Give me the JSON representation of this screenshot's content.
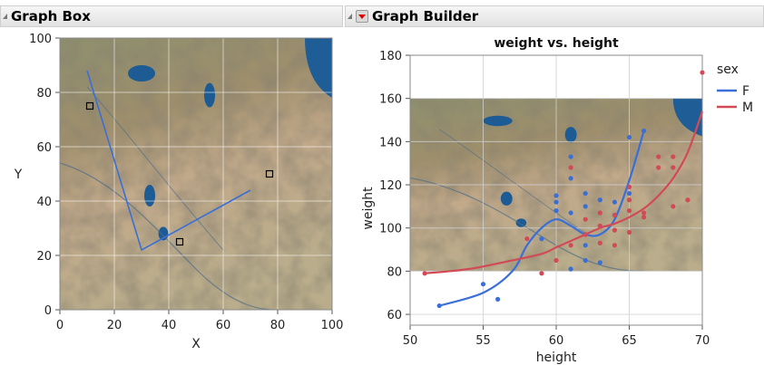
{
  "panels": {
    "left_title": "Graph Box",
    "right_title": "Graph Builder"
  },
  "colors": {
    "F": "#3a6fd8",
    "M": "#d24a55",
    "grid": "#cfcfcf"
  },
  "chart_data": [
    {
      "type": "line",
      "title": "",
      "xlabel": "X",
      "ylabel": "Y",
      "xlim": [
        0,
        100
      ],
      "ylim": [
        0,
        100
      ],
      "x_ticks": [
        0,
        20,
        40,
        60,
        80,
        100
      ],
      "y_ticks": [
        0,
        20,
        40,
        60,
        80,
        100
      ],
      "grid": true,
      "background": "satellite-map-image",
      "series": [
        {
          "values": [
            [
              10,
              88
            ],
            [
              30,
              22
            ],
            [
              70,
              44
            ]
          ]
        }
      ],
      "markers": [
        [
          11,
          75
        ],
        [
          77,
          50
        ],
        [
          44,
          25
        ]
      ]
    },
    {
      "type": "scatter",
      "title": "weight vs. height",
      "xlabel": "height",
      "ylabel": "weight",
      "xlim": [
        50,
        70
      ],
      "ylim": [
        55,
        180
      ],
      "x_ticks": [
        50,
        55,
        60,
        65,
        70
      ],
      "y_ticks": [
        60,
        80,
        100,
        120,
        140,
        160,
        180
      ],
      "grid": true,
      "background": "satellite-map-image",
      "background_extent": {
        "x": [
          50,
          70
        ],
        "y": [
          80,
          160
        ]
      },
      "legend": {
        "title": "sex",
        "position": "right",
        "entries": [
          "F",
          "M"
        ]
      },
      "series": [
        {
          "name": "F",
          "points": [
            [
              52,
              64
            ],
            [
              55,
              74
            ],
            [
              56,
              67
            ],
            [
              59,
              95
            ],
            [
              60,
              112
            ],
            [
              60,
              115
            ],
            [
              60,
              108
            ],
            [
              61,
              133
            ],
            [
              61,
              123
            ],
            [
              61,
              107
            ],
            [
              61,
              81
            ],
            [
              62,
              85
            ],
            [
              62,
              92
            ],
            [
              62,
              110
            ],
            [
              62,
              116
            ],
            [
              63,
              84
            ],
            [
              63,
              113
            ],
            [
              64,
              112
            ],
            [
              65,
              142
            ],
            [
              65,
              116
            ],
            [
              66,
              145
            ]
          ],
          "fit": [
            [
              52,
              64
            ],
            [
              55,
              70
            ],
            [
              57,
              80
            ],
            [
              58,
              92
            ],
            [
              59,
              100
            ],
            [
              60,
              104
            ],
            [
              61,
              101
            ],
            [
              62,
              97
            ],
            [
              63,
              97
            ],
            [
              64,
              104
            ],
            [
              65,
              122
            ],
            [
              66,
              145
            ]
          ]
        },
        {
          "name": "M",
          "points": [
            [
              51,
              79
            ],
            [
              58,
              95
            ],
            [
              59,
              79
            ],
            [
              60,
              85
            ],
            [
              61,
              128
            ],
            [
              61,
              92
            ],
            [
              62,
              97
            ],
            [
              62,
              104
            ],
            [
              63,
              93
            ],
            [
              63,
              101
            ],
            [
              63,
              107
            ],
            [
              64,
              92
            ],
            [
              64,
              99
            ],
            [
              64,
              106
            ],
            [
              65,
              98
            ],
            [
              65,
              108
            ],
            [
              65,
              113
            ],
            [
              65,
              119
            ],
            [
              66,
              105
            ],
            [
              66,
              107
            ],
            [
              67,
              128
            ],
            [
              67,
              133
            ],
            [
              68,
              110
            ],
            [
              68,
              128
            ],
            [
              68,
              133
            ],
            [
              69,
              113
            ],
            [
              70,
              172
            ]
          ],
          "fit": [
            [
              51,
              79
            ],
            [
              54,
              81
            ],
            [
              57,
              85
            ],
            [
              59,
              88
            ],
            [
              60,
              91
            ],
            [
              61,
              94
            ],
            [
              62,
              97
            ],
            [
              63,
              100
            ],
            [
              64,
              102
            ],
            [
              65,
              105
            ],
            [
              66,
              109
            ],
            [
              67,
              115
            ],
            [
              68,
              123
            ],
            [
              69,
              135
            ],
            [
              70,
              154
            ]
          ]
        }
      ]
    }
  ]
}
